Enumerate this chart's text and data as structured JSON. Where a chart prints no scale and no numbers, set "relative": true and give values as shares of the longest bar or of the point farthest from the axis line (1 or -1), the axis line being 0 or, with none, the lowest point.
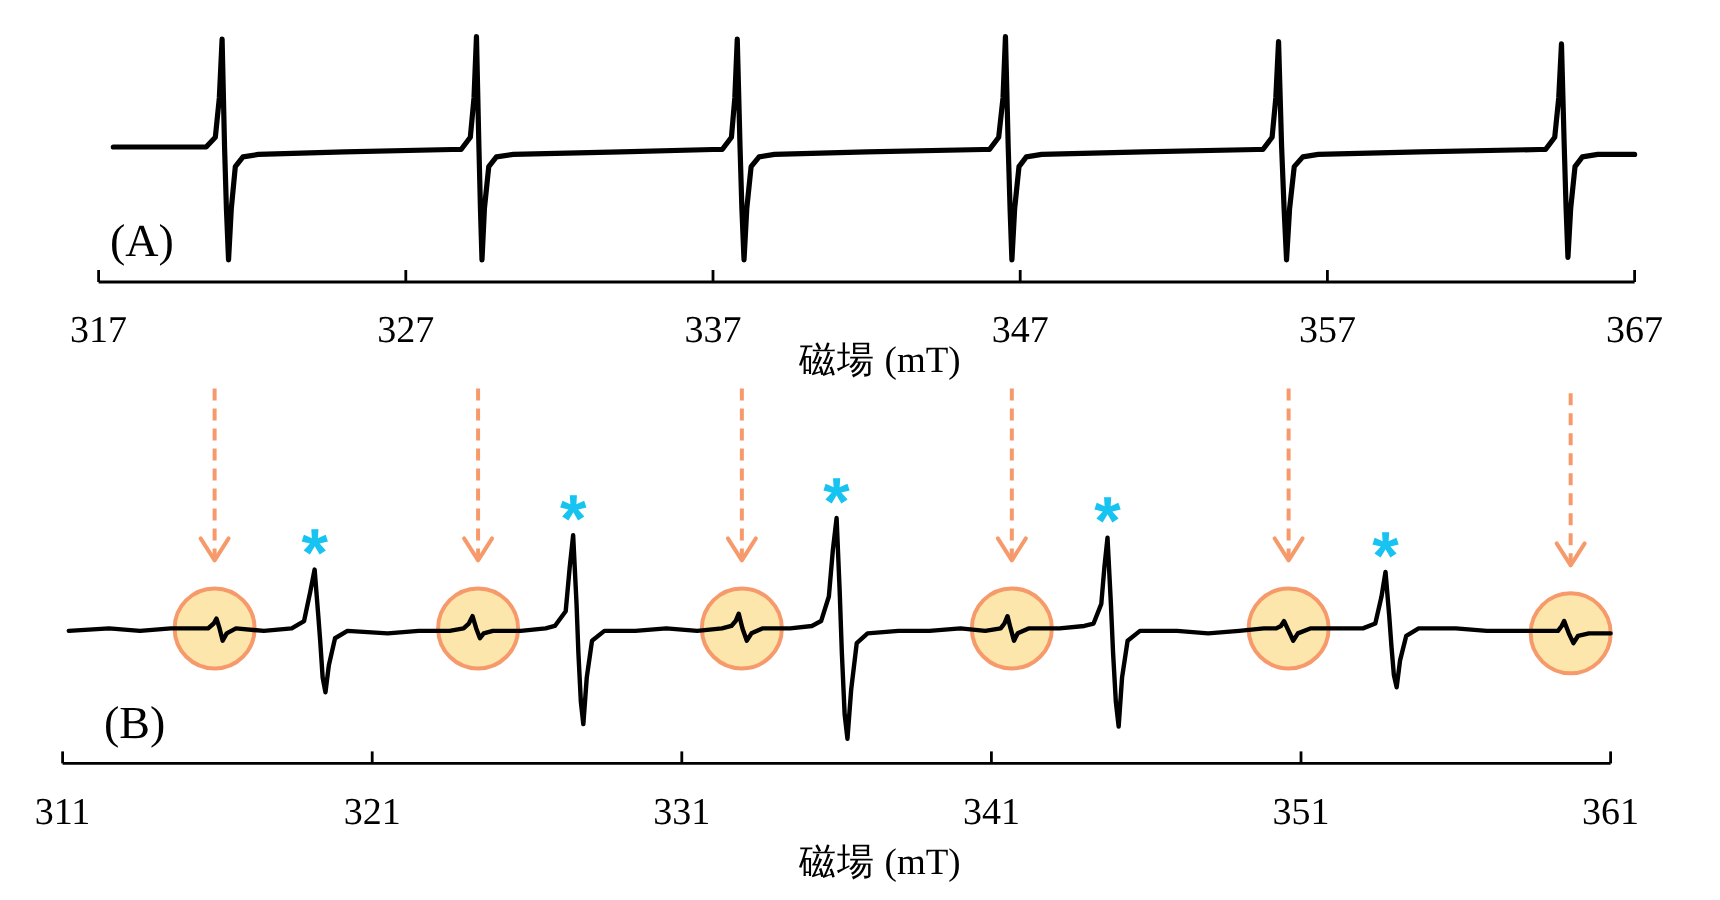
{
  "chart_data": [
    {
      "type": "line",
      "relative": true,
      "xlim": [
        317,
        367
      ],
      "xticks": [
        317,
        327,
        337,
        347,
        357,
        367
      ],
      "xlabel": "磁場 (mT)",
      "annotations": [
        "(A)"
      ],
      "series": [
        {
          "color": "#000000",
          "x": [
            317.48,
            320.5,
            320.8,
            320.93,
            321.02,
            321.1,
            321.16,
            321.23,
            321.32,
            321.45,
            321.7,
            322.2,
            325,
            328.5,
            328.8,
            329.1,
            329.22,
            329.3,
            329.38,
            329.43,
            329.48,
            329.56,
            329.7,
            329.95,
            330.5,
            334,
            337,
            337.3,
            337.6,
            337.71,
            337.79,
            337.88,
            337.94,
            338.01,
            338.1,
            338.24,
            338.5,
            339,
            342,
            345.8,
            346.0,
            346.3,
            346.44,
            346.52,
            346.61,
            346.67,
            346.73,
            346.82,
            346.96,
            347.2,
            347.7,
            351,
            354.7,
            354.9,
            355.2,
            355.32,
            355.41,
            355.51,
            355.59,
            355.67,
            355.77,
            355.92,
            356.2,
            356.7,
            360,
            363.9,
            364.1,
            364.4,
            364.53,
            364.62,
            364.71,
            364.77,
            364.83,
            364.92,
            365.06,
            365.3,
            365.8,
            367
          ],
          "values": [
            0.55,
            0.55,
            0.59,
            0.75,
            0.99,
            0.55,
            0.3,
            0.09,
            0.3,
            0.47,
            0.51,
            0.52,
            0.53,
            0.54,
            0.54,
            0.59,
            0.75,
            1.0,
            0.55,
            0.3,
            0.09,
            0.3,
            0.47,
            0.51,
            0.52,
            0.53,
            0.54,
            0.54,
            0.59,
            0.75,
            0.99,
            0.55,
            0.3,
            0.09,
            0.3,
            0.47,
            0.51,
            0.52,
            0.53,
            0.54,
            0.54,
            0.59,
            0.75,
            1.0,
            0.55,
            0.3,
            0.09,
            0.3,
            0.47,
            0.51,
            0.52,
            0.53,
            0.54,
            0.54,
            0.59,
            0.75,
            0.98,
            0.55,
            0.3,
            0.09,
            0.3,
            0.47,
            0.51,
            0.52,
            0.53,
            0.54,
            0.54,
            0.59,
            0.75,
            0.97,
            0.55,
            0.3,
            0.1,
            0.3,
            0.47,
            0.51,
            0.52,
            0.52
          ]
        }
      ]
    },
    {
      "type": "line",
      "relative": true,
      "xlim": [
        311,
        361
      ],
      "xticks": [
        311,
        321,
        331,
        341,
        351,
        361
      ],
      "xlabel": "磁場 (mT)",
      "annotations": [
        "(B)",
        {
          "text": "*",
          "x": 319.14,
          "y": 0.79
        },
        {
          "text": "*",
          "x": 327.49,
          "y": 0.93
        },
        {
          "text": "*",
          "x": 336.0,
          "y": 1.0
        },
        {
          "text": "*",
          "x": 344.75,
          "y": 0.92
        },
        {
          "text": "*",
          "x": 353.73,
          "y": 0.78
        }
      ],
      "series": [
        {
          "type": "scatter",
          "marker": "circle",
          "color": "#fde6ab",
          "x": [
            315.91,
            324.42,
            332.94,
            341.66,
            350.6,
            359.71
          ],
          "values": [
            0.55,
            0.55,
            0.55,
            0.55,
            0.55,
            0.53
          ]
        },
        {
          "color": "#000000",
          "x": [
            311.2,
            312.5,
            313.5,
            314.5,
            315.7,
            315.88,
            315.97,
            316.07,
            316.17,
            316.3,
            316.6,
            317.5,
            318.4,
            318.8,
            319.0,
            319.14,
            319.26,
            319.32,
            319.4,
            319.49,
            319.6,
            319.8,
            320.2,
            321.5,
            322.5,
            323.5,
            323.95,
            324.12,
            324.24,
            324.36,
            324.48,
            324.6,
            324.9,
            325.8,
            326.6,
            326.9,
            327.25,
            327.38,
            327.49,
            327.6,
            327.66,
            327.74,
            327.82,
            327.93,
            328.1,
            328.5,
            329.5,
            330.5,
            331.5,
            332.3,
            332.6,
            332.74,
            332.84,
            332.96,
            333.1,
            333.25,
            333.6,
            334.5,
            335.2,
            335.5,
            335.75,
            335.88,
            336.0,
            336.1,
            336.17,
            336.26,
            336.35,
            336.47,
            336.65,
            337.0,
            338,
            339,
            340,
            340.8,
            341.3,
            341.42,
            341.52,
            341.62,
            341.73,
            341.85,
            342.2,
            343.2,
            344.0,
            344.3,
            344.55,
            344.65,
            344.75,
            344.86,
            344.93,
            345.02,
            345.11,
            345.22,
            345.4,
            345.8,
            347,
            348,
            349,
            349.8,
            350.2,
            350.35,
            350.45,
            350.6,
            350.75,
            350.9,
            351.3,
            352.3,
            353.0,
            353.4,
            353.6,
            353.73,
            353.85,
            353.92,
            354.0,
            354.09,
            354.2,
            354.4,
            354.8,
            356,
            357,
            358,
            359,
            359.3,
            359.42,
            359.5,
            359.65,
            359.8,
            359.95,
            360.3,
            361
          ],
          "values": [
            0.54,
            0.55,
            0.54,
            0.55,
            0.55,
            0.57,
            0.59,
            0.55,
            0.5,
            0.53,
            0.55,
            0.54,
            0.55,
            0.58,
            0.7,
            0.79,
            0.6,
            0.5,
            0.35,
            0.29,
            0.4,
            0.51,
            0.54,
            0.53,
            0.54,
            0.54,
            0.55,
            0.57,
            0.6,
            0.55,
            0.51,
            0.53,
            0.54,
            0.54,
            0.55,
            0.56,
            0.62,
            0.8,
            0.93,
            0.65,
            0.45,
            0.25,
            0.16,
            0.35,
            0.5,
            0.54,
            0.54,
            0.55,
            0.54,
            0.55,
            0.56,
            0.58,
            0.61,
            0.55,
            0.5,
            0.53,
            0.55,
            0.55,
            0.56,
            0.58,
            0.68,
            0.87,
            1.0,
            0.7,
            0.45,
            0.2,
            0.1,
            0.3,
            0.49,
            0.53,
            0.54,
            0.54,
            0.55,
            0.54,
            0.55,
            0.57,
            0.6,
            0.55,
            0.5,
            0.53,
            0.55,
            0.55,
            0.56,
            0.57,
            0.65,
            0.8,
            0.92,
            0.65,
            0.45,
            0.25,
            0.15,
            0.35,
            0.5,
            0.54,
            0.54,
            0.53,
            0.54,
            0.55,
            0.55,
            0.56,
            0.58,
            0.54,
            0.5,
            0.53,
            0.55,
            0.55,
            0.55,
            0.57,
            0.68,
            0.78,
            0.6,
            0.48,
            0.36,
            0.31,
            0.42,
            0.52,
            0.55,
            0.55,
            0.54,
            0.54,
            0.54,
            0.54,
            0.56,
            0.58,
            0.53,
            0.49,
            0.52,
            0.53,
            0.53
          ]
        }
      ]
    }
  ]
}
